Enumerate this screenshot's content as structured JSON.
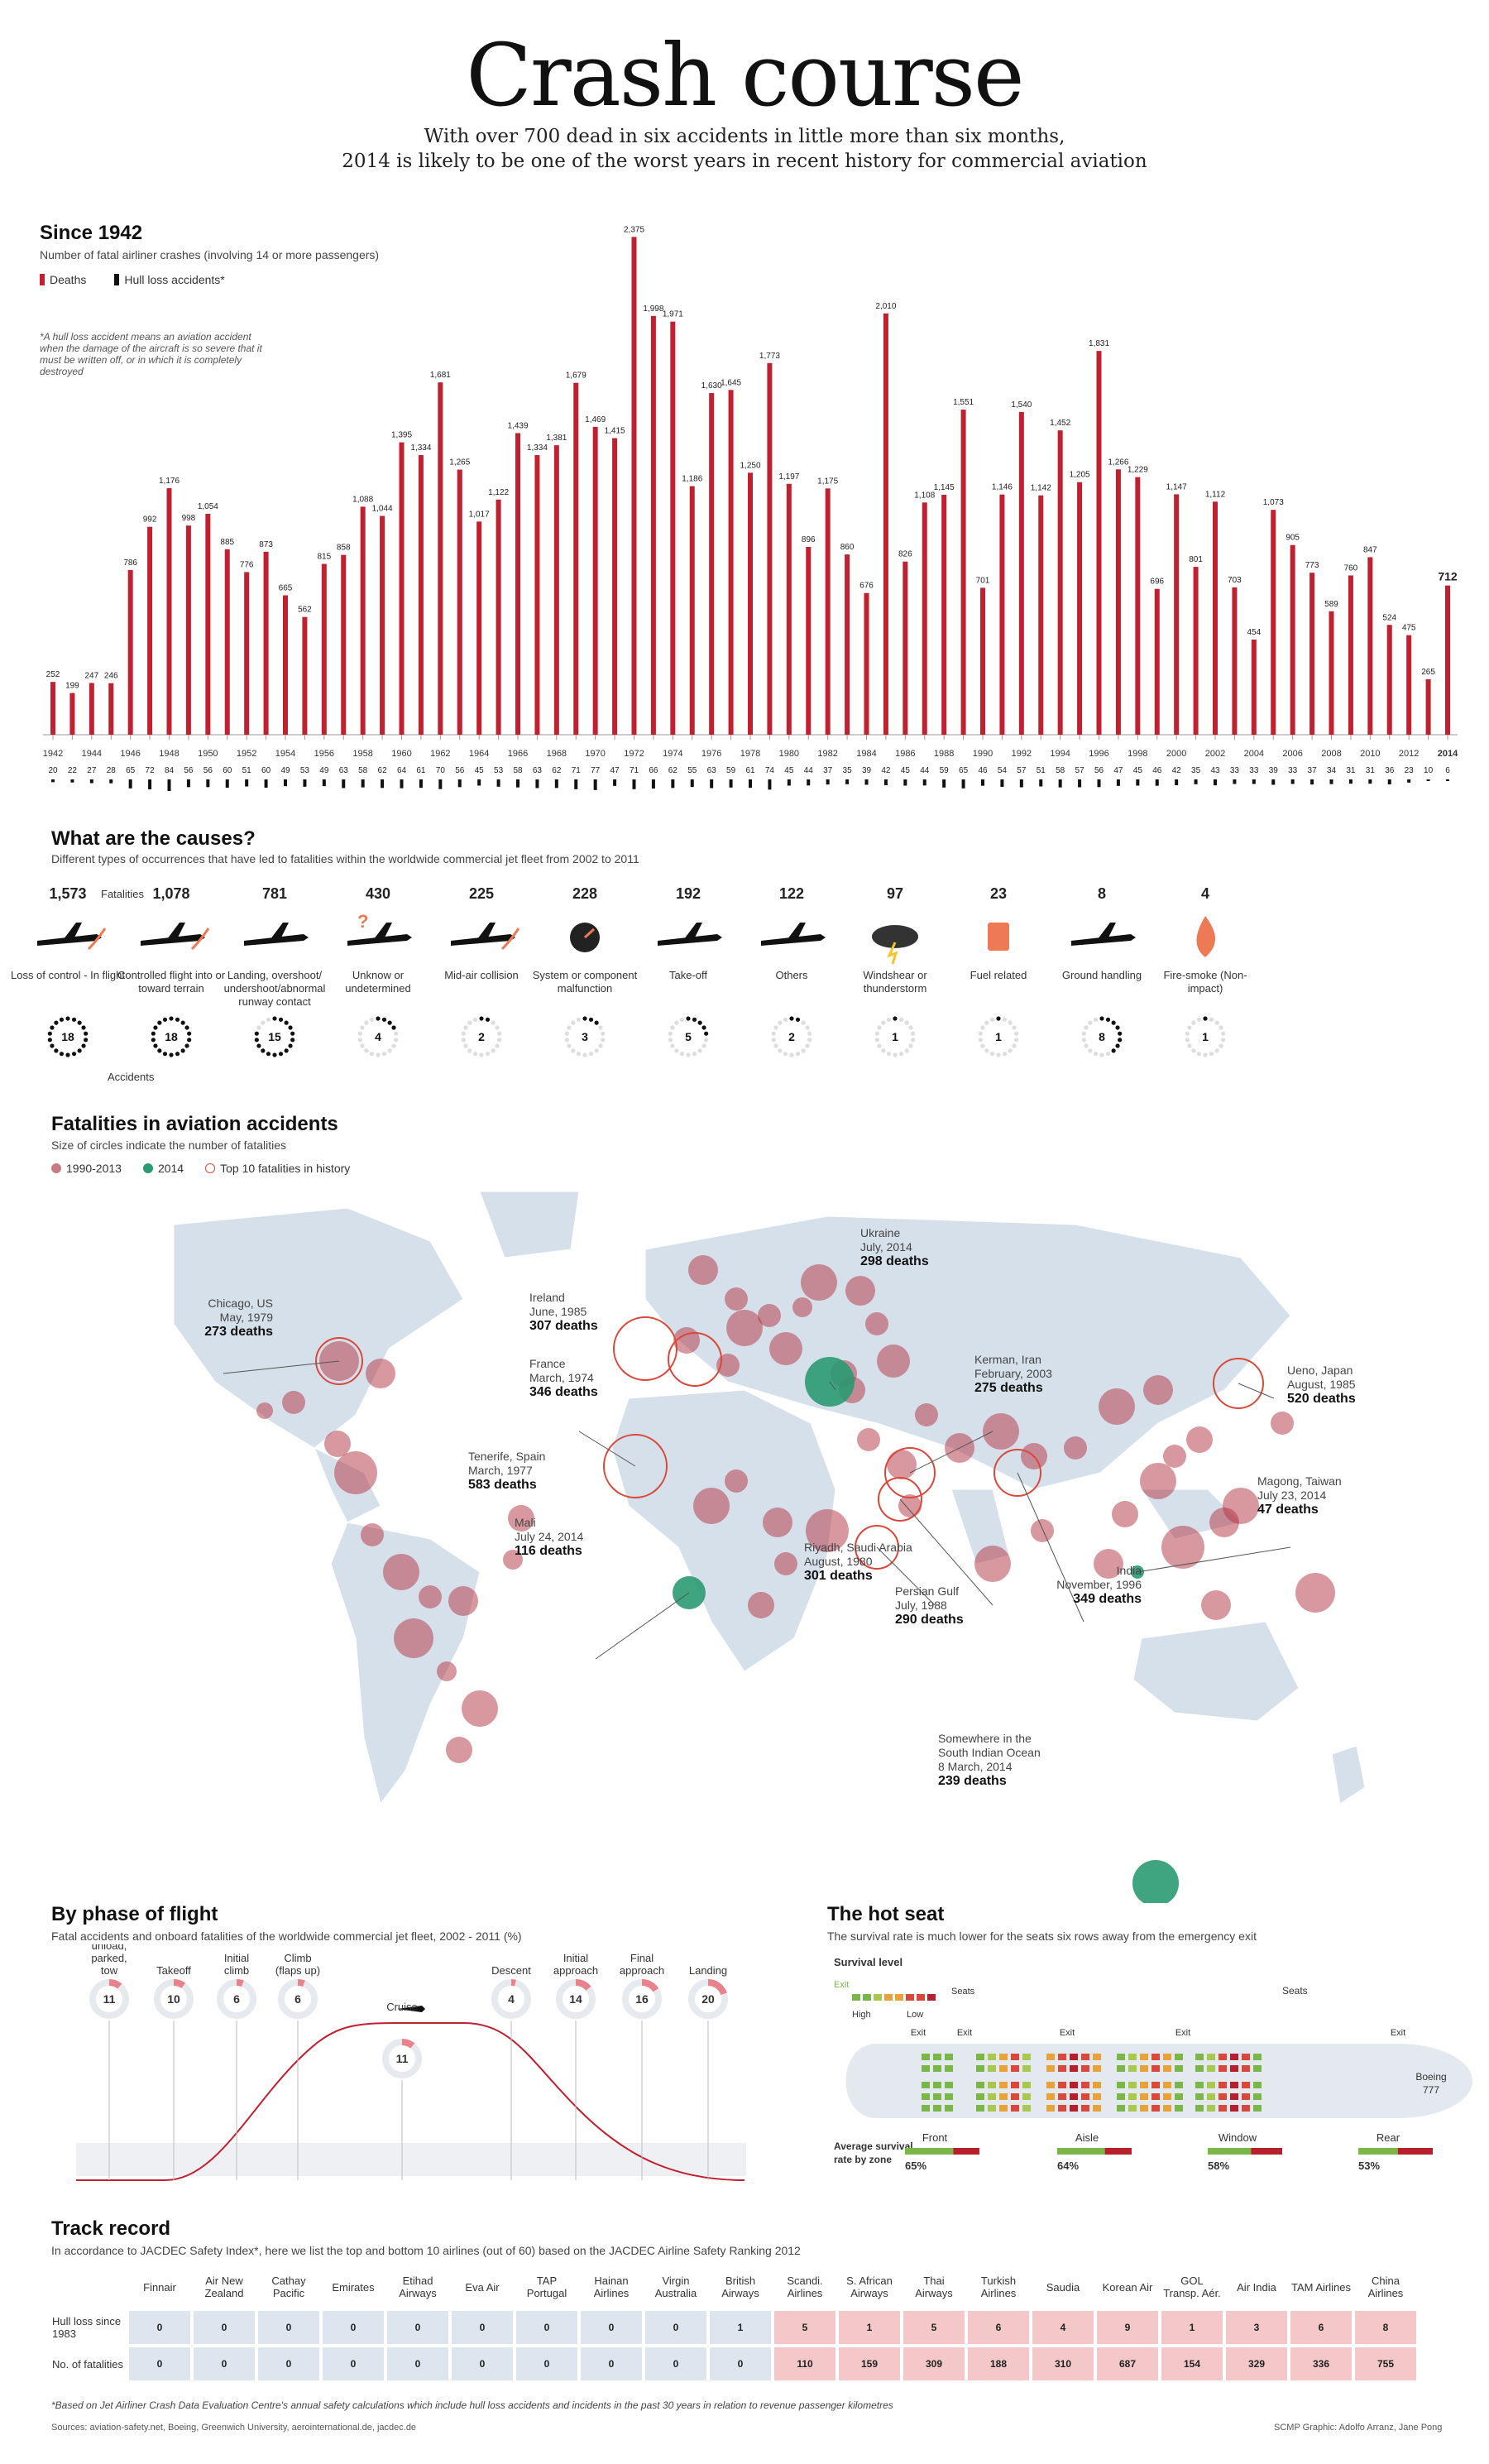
{
  "header": {
    "title": "Crash course",
    "subtitle_1": "With over 700 dead in six accidents in little more than six months,",
    "subtitle_2": "2014 is likely to be one of the worst years in recent history for commercial aviation"
  },
  "since1942": {
    "heading": "Since 1942",
    "sub": "Number of fatal airliner crashes (involving 14 or more passengers)",
    "legend_deaths": "Deaths",
    "legend_hull": "Hull loss accidents*",
    "note": "*A hull loss accident means an aviation accident when the damage of the aircraft is so severe that it must be written off, or in which it is completely destroyed"
  },
  "chart_data": {
    "type": "bar",
    "x": [
      1942,
      1943,
      1944,
      1945,
      1946,
      1947,
      1948,
      1949,
      1950,
      1951,
      1952,
      1953,
      1954,
      1955,
      1956,
      1957,
      1958,
      1959,
      1960,
      1961,
      1962,
      1963,
      1964,
      1965,
      1966,
      1967,
      1968,
      1969,
      1970,
      1971,
      1972,
      1973,
      1974,
      1975,
      1976,
      1977,
      1978,
      1979,
      1980,
      1981,
      1982,
      1983,
      1984,
      1985,
      1986,
      1987,
      1988,
      1989,
      1990,
      1991,
      1992,
      1993,
      1994,
      1995,
      1996,
      1997,
      1998,
      1999,
      2000,
      2001,
      2002,
      2003,
      2004,
      2005,
      2006,
      2007,
      2008,
      2009,
      2010,
      2011,
      2012,
      2013,
      2014
    ],
    "x_tick_labels": [
      "1942",
      "1944",
      "1946",
      "1948",
      "1950",
      "1952",
      "1954",
      "1956",
      "1958",
      "1960",
      "1962",
      "1964",
      "1966",
      "1968",
      "1970",
      "1972",
      "1974",
      "1976",
      "1978",
      "1980",
      "1982",
      "1984",
      "1986",
      "1988",
      "1990",
      "1992",
      "1994",
      "1996",
      "1998",
      "2000",
      "2002",
      "2004",
      "2006",
      "2008",
      "2010",
      "2012",
      "2014"
    ],
    "series": [
      {
        "name": "Deaths",
        "values": [
          252,
          199,
          247,
          246,
          786,
          992,
          1176,
          998,
          1054,
          885,
          776,
          873,
          665,
          562,
          815,
          858,
          1088,
          1044,
          1395,
          1334,
          1681,
          1265,
          1017,
          1122,
          1439,
          1334,
          1381,
          1679,
          1469,
          1415,
          2375,
          1998,
          1971,
          1186,
          1630,
          1645,
          1250,
          1773,
          1197,
          896,
          1175,
          860,
          676,
          2010,
          826,
          1108,
          1145,
          1551,
          701,
          1146,
          1540,
          1142,
          1452,
          1205,
          1831,
          1266,
          1229,
          696,
          1147,
          801,
          1112,
          703,
          454,
          1073,
          905,
          773,
          589,
          760,
          847,
          524,
          475,
          265,
          712
        ]
      },
      {
        "name": "Hull loss accidents*",
        "values": [
          20,
          22,
          27,
          28,
          65,
          72,
          84,
          56,
          56,
          60,
          51,
          60,
          49,
          53,
          49,
          63,
          58,
          62,
          64,
          61,
          70,
          56,
          45,
          53,
          58,
          63,
          62,
          71,
          77,
          47,
          71,
          66,
          62,
          55,
          63,
          59,
          61,
          74,
          45,
          44,
          37,
          35,
          39,
          42,
          45,
          44,
          59,
          65,
          46,
          54,
          57,
          51,
          58,
          57,
          56,
          47,
          45,
          46,
          42,
          35,
          43,
          33,
          33,
          39,
          33,
          37,
          34,
          31,
          31,
          36,
          23,
          10,
          6
        ]
      }
    ],
    "ylim": [
      0,
      2400
    ]
  },
  "causes": {
    "heading": "What are the causes?",
    "sub": "Different types of occurrences that have led to fatalities within the worldwide commercial jet fleet from 2002 to 2011",
    "fatalities_label": "Fatalities",
    "accidents_label": "Accidents",
    "items": [
      {
        "fatalities": "1,573",
        "label": "Loss of control - In flight",
        "accidents": 18
      },
      {
        "fatalities": "1,078",
        "label": "Controlled flight into or toward terrain",
        "accidents": 18
      },
      {
        "fatalities": "781",
        "label": "Landing, overshoot/ undershoot/abnormal runway contact",
        "accidents": 15
      },
      {
        "fatalities": "430",
        "label": "Unknow or undetermined",
        "accidents": 4
      },
      {
        "fatalities": "225",
        "label": "Mid-air collision",
        "accidents": 2
      },
      {
        "fatalities": "228",
        "label": "System or component malfunction",
        "accidents": 3
      },
      {
        "fatalities": "192",
        "label": "Take-off",
        "accidents": 5
      },
      {
        "fatalities": "122",
        "label": "Others",
        "accidents": 2
      },
      {
        "fatalities": "97",
        "label": "Windshear or thunderstorm",
        "accidents": 1
      },
      {
        "fatalities": "23",
        "label": "Fuel related",
        "accidents": 1
      },
      {
        "fatalities": "8",
        "label": "Ground handling",
        "accidents": 8
      },
      {
        "fatalities": "4",
        "label": "Fire-smoke (Non-impact)",
        "accidents": 1
      }
    ]
  },
  "map": {
    "heading": "Fatalities in aviation accidents",
    "sub": "Size of circles indicate the number of fatalities",
    "legend_1": "1990-2013",
    "legend_2": "2014",
    "legend_3": "Top 10 fatalities in history",
    "labels": [
      {
        "text": "Chicago, US\nMay, 1979",
        "deaths": "273 deaths"
      },
      {
        "text": "Ireland\nJune, 1985",
        "deaths": "307 deaths"
      },
      {
        "text": "France\nMarch, 1974",
        "deaths": "346 deaths"
      },
      {
        "text": "Tenerife, Spain\nMarch, 1977",
        "deaths": "583 deaths"
      },
      {
        "text": "Mali\nJuly 24, 2014",
        "deaths": "116 deaths"
      },
      {
        "text": "Ukraine\nJuly, 2014",
        "deaths": "298 deaths"
      },
      {
        "text": "Kerman, Iran\nFebruary, 2003",
        "deaths": "275 deaths"
      },
      {
        "text": "Riyadh, Saudi Arabia\nAugust, 1980",
        "deaths": "301 deaths"
      },
      {
        "text": "Persian Gulf\nJuly, 1988",
        "deaths": "290 deaths"
      },
      {
        "text": "India\nNovember, 1996",
        "deaths": "349 deaths"
      },
      {
        "text": "Ueno, Japan\nAugust, 1985",
        "deaths": "520 deaths"
      },
      {
        "text": "Magong, Taiwan\nJuly 23, 2014",
        "deaths": "47 deaths"
      },
      {
        "text": "Somewhere in the\nSouth Indian Ocean\n8 March, 2014",
        "deaths": "239 deaths"
      }
    ]
  },
  "phase": {
    "heading": "By phase of flight",
    "sub": "Fatal accidents and onboard fatalities of the worldwide commercial jet fleet, 2002 - 2011 (%)",
    "items": [
      {
        "label": "Taxi, load, unload, parked, tow",
        "value": 11
      },
      {
        "label": "Takeoff",
        "value": 10
      },
      {
        "label": "Initial climb",
        "value": 6
      },
      {
        "label": "Climb (flaps up)",
        "value": 6
      },
      {
        "label": "Cruise",
        "value": 11
      },
      {
        "label": "Descent",
        "value": 4
      },
      {
        "label": "Initial approach",
        "value": 14
      },
      {
        "label": "Final approach",
        "value": 16
      },
      {
        "label": "Landing",
        "value": 20
      }
    ]
  },
  "hotseat": {
    "heading": "The hot seat",
    "sub": "The survival rate is much lower for the seats six rows away from the emergency exit",
    "survival_level": "Survival level",
    "exit": "Exit",
    "seats": "Seats",
    "high": "High",
    "low": "Low",
    "aircraft": "Boeing 777",
    "avg_label": "Average survival rate by zone",
    "colors": {
      "high": "#7ab648",
      "mid": "#e8a23a",
      "low": "#d9483b",
      "red": "#b81f2d"
    },
    "zones": [
      {
        "name": "Front",
        "value": "65%",
        "rate": 0.65
      },
      {
        "name": "Aisle",
        "value": "64%",
        "rate": 0.64
      },
      {
        "name": "Window",
        "value": "58%",
        "rate": 0.58
      },
      {
        "name": "Rear",
        "value": "53%",
        "rate": 0.53
      }
    ]
  },
  "track": {
    "heading": "Track record",
    "sub": "In accordance to JACDEC Safety Index*, here we list the top and bottom 10 airlines (out of 60) based on the JACDEC Airline Safety Ranking 2012",
    "row1_label": "Hull loss since 1983",
    "row2_label": "No. of fatalities",
    "airlines": [
      "Finnair",
      "Air New Zealand",
      "Cathay Pacific",
      "Emirates",
      "Etihad Airways",
      "Eva Air",
      "TAP Portugal",
      "Hainan Airlines",
      "Virgin Australia",
      "British Airways",
      "Scandi. Airlines",
      "S. African Airways",
      "Thai Airways",
      "Turkish Airlines",
      "Saudia",
      "Korean Air",
      "GOL Transp. Aér.",
      "Air India",
      "TAM Airlines",
      "China Airlines"
    ],
    "hull": [
      "0",
      "0",
      "0",
      "0",
      "0",
      "0",
      "0",
      "0",
      "0",
      "1",
      "5",
      "1",
      "5",
      "6",
      "4",
      "9",
      "1",
      "3",
      "6",
      "8"
    ],
    "fatalities": [
      "0",
      "0",
      "0",
      "0",
      "0",
      "0",
      "0",
      "0",
      "0",
      "0",
      "110",
      "159",
      "309",
      "188",
      "310",
      "687",
      "154",
      "329",
      "336",
      "755"
    ],
    "footnote": "*Based on Jet Airliner Crash Data Evaluation Centre's annual safety calculations which include hull loss accidents and incidents in the past 30 years in relation to revenue passenger kilometres",
    "sources": "Sources: aviation-safety.net, Boeing, Greenwich University, aerointernational.de, jacdec.de",
    "credit": "SCMP Graphic: Adolfo Arranz, Jane Pong"
  }
}
